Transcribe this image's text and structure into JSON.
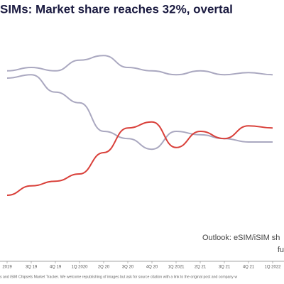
{
  "chart_data": {
    "type": "line",
    "title": "SIMs: Market share reaches 32%, overtal",
    "categories": [
      "2019",
      "3Q 19",
      "4Q 19",
      "1Q 2020",
      "2Q 20",
      "3Q 20",
      "4Q 20",
      "1Q 2021",
      "2Q 21",
      "3Q 21",
      "4Q 21",
      "1Q 2022"
    ],
    "series": [
      {
        "name": null,
        "color": "#aaa8c0",
        "values": [
          46.7,
          47.5,
          46.7,
          49.2,
          50.3,
          47.5,
          46.7,
          45.8,
          46.7,
          45.8,
          46.3,
          45.8
        ]
      },
      {
        "name": null,
        "color": "#aaa8c0",
        "values": [
          45,
          45.8,
          41.7,
          39.2,
          32.5,
          30.8,
          28.3,
          32.5,
          31.7,
          30.8,
          30,
          30
        ]
      },
      {
        "name": null,
        "color": "#d9403a",
        "values": [
          17.5,
          19.7,
          20.8,
          22.5,
          27.5,
          33.3,
          34.7,
          28.7,
          32.5,
          30.8,
          33.8,
          33.3
        ]
      }
    ],
    "ylim": [
      0,
      60
    ],
    "annotations": [
      "Outlook: eSIM/iSIM sh",
      "fu"
    ],
    "source": "s and iSIM Chipsets Market Tracker. We welcome republishing of images but ask for source citation with a link to the original post and company w"
  }
}
